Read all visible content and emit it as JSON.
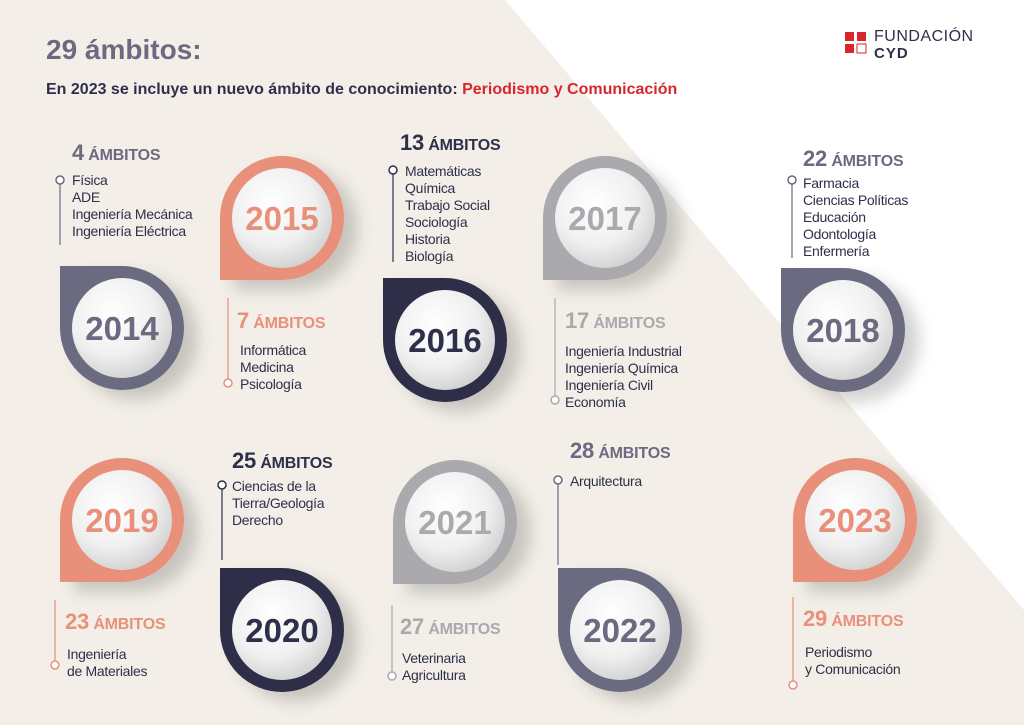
{
  "header": {
    "title": "29 ámbitos:",
    "subtitle": "En 2023 se incluye un nuevo ámbito de conocimiento:",
    "subtitle_highlight": "Periodismo y Comunicación"
  },
  "logo": {
    "line1": "FUNDACIÓN",
    "line2": "CYD"
  },
  "items": [
    {
      "year": 2014,
      "count": 4,
      "unit": "ÁMBITOS",
      "fields": [
        "Física",
        "ADE",
        "Ingeniería Mecánica",
        "Ingeniería Eléctrica"
      ]
    },
    {
      "year": 2015,
      "count": 7,
      "unit": "ÁMBITOS",
      "fields": [
        "Informática",
        "Medicina",
        "Psicología"
      ]
    },
    {
      "year": 2016,
      "count": 13,
      "unit": "ÁMBITOS",
      "fields": [
        "Matemáticas",
        "Química",
        "Trabajo Social",
        "Sociología",
        "Historia",
        "Biología"
      ]
    },
    {
      "year": 2017,
      "count": 17,
      "unit": "ÁMBITOS",
      "fields": [
        "Ingeniería Industrial",
        "Ingeniería Química",
        "Ingeniería Civil",
        "Economía"
      ]
    },
    {
      "year": 2018,
      "count": 22,
      "unit": "ÁMBITOS",
      "fields": [
        "Farmacia",
        "Ciencias Políticas",
        "Educación",
        "Odontología",
        "Enfermería"
      ]
    },
    {
      "year": 2019,
      "count": 23,
      "unit": "ÁMBITOS",
      "fields": [
        "Ingeniería",
        "de Materiales"
      ]
    },
    {
      "year": 2020,
      "count": 25,
      "unit": "ÁMBITOS",
      "fields": [
        "Ciencias de la",
        "Tierra/Geología",
        "Derecho"
      ]
    },
    {
      "year": 2021,
      "count": 27,
      "unit": "ÁMBITOS",
      "fields": [
        "Veterinaria",
        "Agricultura"
      ]
    },
    {
      "year": 2022,
      "count": 28,
      "unit": "ÁMBITOS",
      "fields": [
        "Arquitectura"
      ]
    },
    {
      "year": 2023,
      "count": 29,
      "unit": "ÁMBITOS",
      "fields": [
        "Periodismo",
        "y Comunicación"
      ]
    }
  ]
}
